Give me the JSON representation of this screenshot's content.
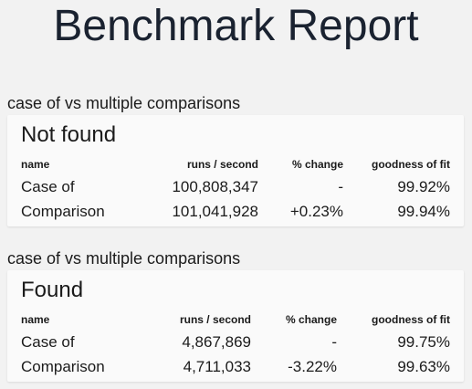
{
  "page": {
    "title": "Benchmark Report"
  },
  "suites": [
    {
      "heading": "case of vs multiple comparisons",
      "title": "Not found",
      "columns": [
        "name",
        "runs / second",
        "% change",
        "goodness of fit"
      ],
      "rows": [
        [
          "Case of",
          "100,808,347",
          "-",
          "99.92%"
        ],
        [
          "Comparison",
          "101,041,928",
          "+0.23%",
          "99.94%"
        ]
      ]
    },
    {
      "heading": "case of vs multiple comparisons",
      "title": "Found",
      "columns": [
        "name",
        "runs / second",
        "% change",
        "goodness of fit"
      ],
      "rows": [
        [
          "Case of",
          "4,867,869",
          "-",
          "99.75%"
        ],
        [
          "Comparison",
          "4,711,033",
          "-3.22%",
          "99.63%"
        ]
      ]
    }
  ]
}
